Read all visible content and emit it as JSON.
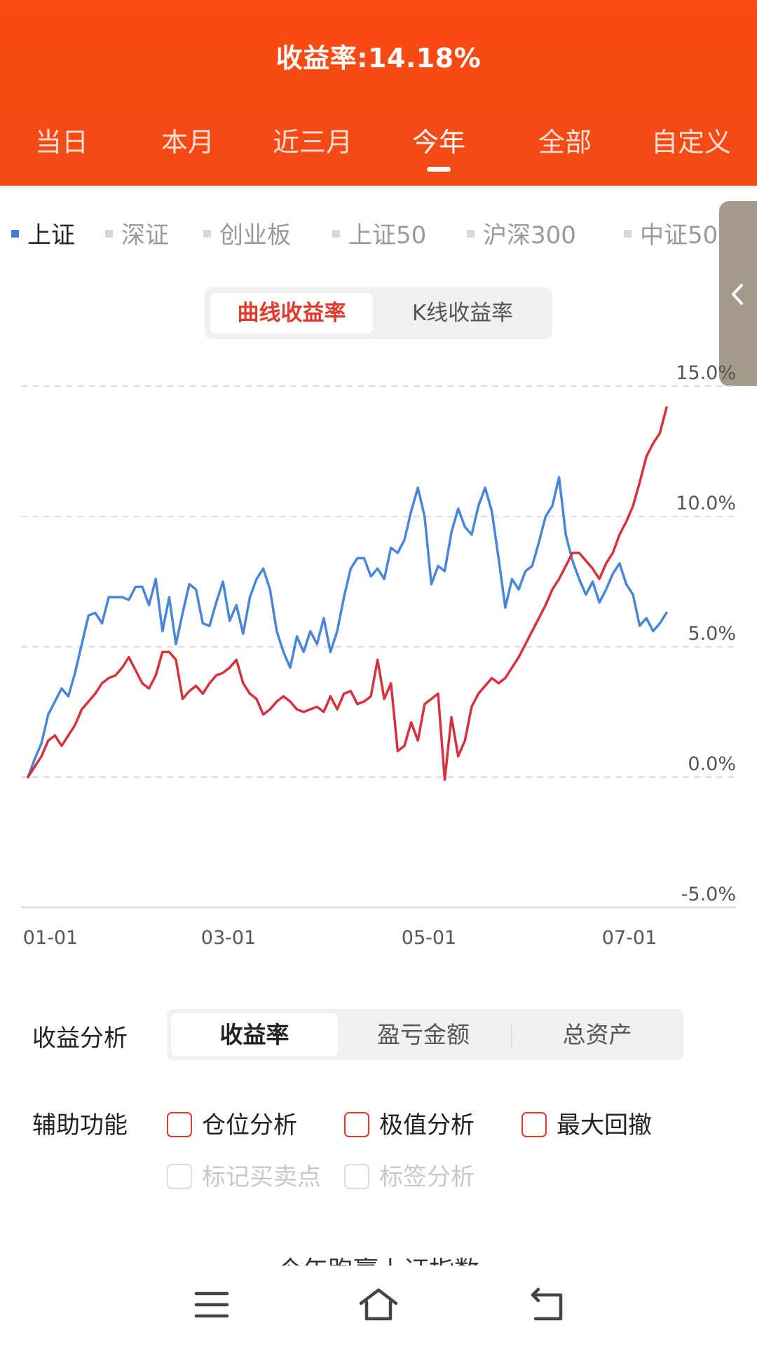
{
  "header": {
    "title": "收益率:14.18%",
    "tabs": [
      "当日",
      "本月",
      "近三月",
      "今年",
      "全部",
      "自定义"
    ],
    "active_tab": 3
  },
  "indices": {
    "items": [
      "上证",
      "深证",
      "创业板",
      "上证50",
      "沪深300",
      "中证50"
    ],
    "active": 0,
    "active_color": "#3b7ddd"
  },
  "mode_toggle": {
    "curve_label": "曲线收益率",
    "kline_label": "K线收益率"
  },
  "chart_data": {
    "type": "line",
    "x_tick_labels": [
      "01-01",
      "03-01",
      "05-01",
      "07-01"
    ],
    "y_tick_labels": [
      "15.0%",
      "10.0%",
      "5.0%",
      "0.0%",
      "-5.0%"
    ],
    "ylim": [
      -5,
      15
    ],
    "grid": "dashed horizontal",
    "series": [
      {
        "color": "#d6323d",
        "values": [
          0.0,
          0.4,
          0.8,
          1.4,
          1.6,
          1.2,
          1.6,
          2.0,
          2.6,
          2.9,
          3.2,
          3.6,
          3.8,
          3.9,
          4.2,
          4.6,
          4.1,
          3.6,
          3.4,
          3.9,
          4.8,
          4.8,
          4.5,
          3.0,
          3.3,
          3.5,
          3.2,
          3.6,
          3.9,
          4.0,
          4.2,
          4.5,
          3.6,
          3.2,
          3.0,
          2.4,
          2.6,
          2.9,
          3.1,
          2.9,
          2.6,
          2.5,
          2.6,
          2.7,
          2.5,
          3.1,
          2.6,
          3.2,
          3.3,
          2.8,
          2.9,
          3.1,
          4.5,
          3.0,
          3.6,
          1.0,
          1.2,
          2.1,
          1.4,
          2.8,
          3.0,
          3.2,
          -0.1,
          2.3,
          0.8,
          1.4,
          2.7,
          3.2,
          3.5,
          3.8,
          3.6,
          3.8,
          4.2,
          4.6,
          5.1,
          5.6,
          6.1,
          6.6,
          7.2,
          7.6,
          8.1,
          8.6,
          8.6,
          8.3,
          8.0,
          7.6,
          8.2,
          8.6,
          9.3,
          9.8,
          10.4,
          11.3,
          12.3,
          12.8,
          13.2,
          14.18
        ]
      },
      {
        "color": "#4a86d6",
        "values": [
          0.0,
          0.7,
          1.3,
          2.4,
          2.9,
          3.4,
          3.1,
          4.0,
          5.1,
          6.2,
          6.3,
          5.9,
          6.9,
          6.9,
          6.9,
          6.8,
          7.3,
          7.3,
          6.6,
          7.6,
          5.6,
          6.9,
          5.1,
          6.3,
          7.4,
          7.2,
          5.9,
          5.8,
          6.7,
          7.5,
          6.0,
          6.6,
          5.5,
          6.9,
          7.6,
          8.0,
          7.2,
          5.6,
          4.8,
          4.2,
          5.4,
          4.8,
          5.6,
          5.1,
          6.1,
          4.8,
          5.6,
          6.9,
          8.0,
          8.4,
          8.4,
          7.7,
          8.0,
          7.6,
          8.8,
          8.6,
          9.1,
          10.2,
          11.1,
          10.0,
          7.4,
          8.1,
          7.9,
          9.4,
          10.3,
          9.6,
          9.3,
          10.4,
          11.1,
          10.2,
          8.4,
          6.5,
          7.6,
          7.2,
          7.9,
          8.1,
          9.0,
          10.0,
          10.4,
          11.5,
          9.3,
          8.3,
          7.6,
          7.0,
          7.5,
          6.7,
          7.2,
          7.8,
          8.2,
          7.4,
          7.0,
          5.8,
          6.1,
          5.6,
          5.9,
          6.3
        ]
      }
    ]
  },
  "analysis": {
    "label": "收益分析",
    "options": [
      "收益率",
      "盈亏金额",
      "总资产"
    ],
    "active": 0
  },
  "aux": {
    "label": "辅助功能",
    "options": [
      "仓位分析",
      "极值分析",
      "最大回撤",
      "标记买卖点",
      "标签分析"
    ],
    "accent": "#e03a2e"
  },
  "truncated_text": "今年跑赢上证指数",
  "nav": {
    "icons": [
      "menu-icon",
      "home-icon",
      "back-icon"
    ]
  }
}
